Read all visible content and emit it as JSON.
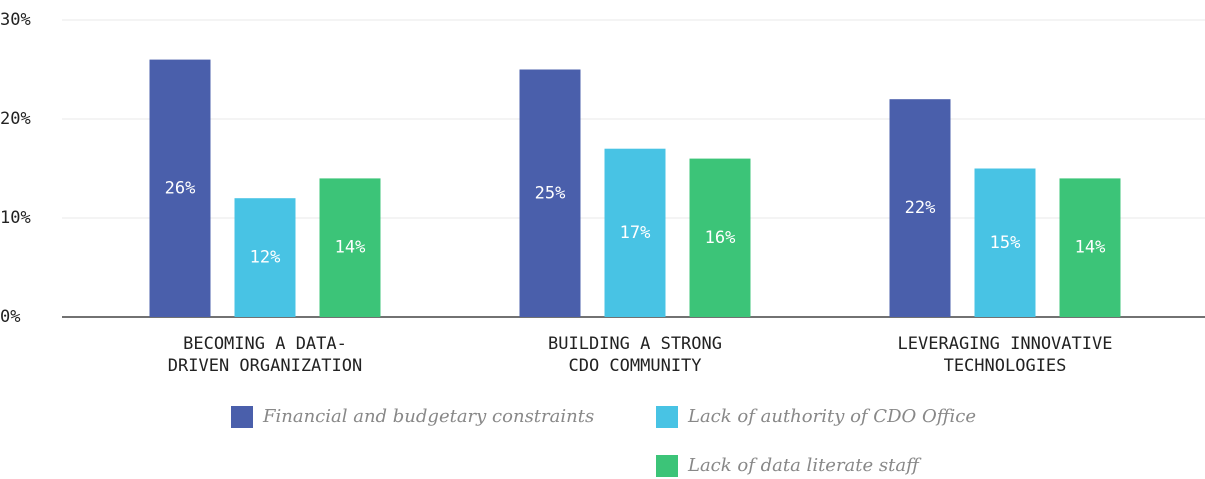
{
  "chart_data": {
    "type": "bar",
    "categories": [
      [
        "BECOMING A DATA-",
        "DRIVEN ORGANIZATION"
      ],
      [
        "BUILDING A STRONG",
        "CDO COMMUNITY"
      ],
      [
        "LEVERAGING INNOVATIVE",
        "TECHNOLOGIES"
      ]
    ],
    "series": [
      {
        "name": "Financial and budgetary constraints",
        "color": "#4a5fab",
        "values": [
          26,
          25,
          22
        ],
        "value_labels": [
          "26%",
          "25%",
          "22%"
        ]
      },
      {
        "name": "Lack of authority of CDO Office",
        "color": "#48c3e4",
        "values": [
          12,
          17,
          15
        ],
        "value_labels": [
          "12%",
          "17%",
          "15%"
        ]
      },
      {
        "name": "Lack of data literate staff",
        "color": "#3cc478",
        "values": [
          14,
          16,
          14
        ],
        "value_labels": [
          "14%",
          "16%",
          "14%"
        ]
      }
    ],
    "ylim": [
      0,
      30
    ],
    "yticks": [
      {
        "value": 0,
        "label": "0%"
      },
      {
        "value": 10,
        "label": "10%"
      },
      {
        "value": 20,
        "label": "20%"
      },
      {
        "value": 30,
        "label": "30%"
      }
    ],
    "grid": true
  }
}
